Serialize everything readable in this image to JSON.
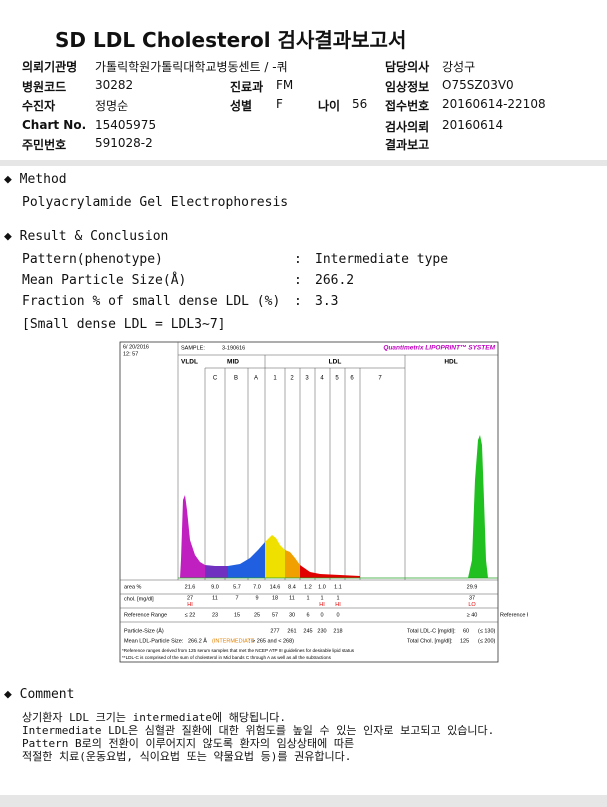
{
  "header": {
    "title": "SD LDL Cholesterol 검사결과보고서",
    "fields": [
      {
        "label": "의뢰기관명",
        "value": "가톨릭학원가톨릭대학교병동센트 / -쿼"
      },
      {
        "label": "담당의사",
        "value": "강성구"
      },
      {
        "label": "병원코드",
        "value": "30282"
      },
      {
        "label": "진료과",
        "value": "FM"
      },
      {
        "label": "임상정보",
        "value": "O75SZ03V0"
      },
      {
        "label": "수진자",
        "value": "정명순"
      },
      {
        "label": "성별",
        "value": "F"
      },
      {
        "label": "나이",
        "value": "56"
      },
      {
        "label": "접수번호",
        "value": "20160614-22108"
      },
      {
        "label": "Chart No.",
        "value": "15405975"
      },
      {
        "label": "검사의뢰",
        "value": "20160614"
      },
      {
        "label": "주민번호",
        "value": "591028-2"
      },
      {
        "label": "결과보고"
      }
    ]
  },
  "method": {
    "heading": "Method",
    "text": "Polyacrylamide Gel Electrophoresis"
  },
  "result": {
    "heading": "Result & Conclusion",
    "separator": ":",
    "rows": [
      {
        "label": "Pattern(phenotype)",
        "value": "Intermediate type"
      },
      {
        "label": "Mean Particle Size(Å)",
        "value": "266.2"
      },
      {
        "label": "Fraction % of small dense LDL (%)",
        "value": "3.3"
      }
    ],
    "note": "[Small dense LDL = LDL3~7]"
  },
  "gel": {
    "date": "6/ 20/2016",
    "time": "12: 57",
    "sample_label": "SAMPLE:",
    "sample": "3-190616",
    "system": "Quantimetrix LIPOPRINT™ SYSTEM",
    "bands": [
      "VLDL",
      "MID",
      "LDL",
      "HDL"
    ],
    "fractions": [
      "C",
      "B",
      "A",
      "1",
      "2",
      "3",
      "4",
      "5",
      "6",
      "7"
    ],
    "area": {
      "label": "area %",
      "values": [
        "21.6",
        "9.0",
        "5.7",
        "7.0",
        "14.6",
        "8.4",
        "1.2",
        "1.0",
        "1.1",
        "29.9"
      ]
    },
    "chol": {
      "label": "chol. [mg/dl]",
      "values": [
        "27",
        "11",
        "7",
        "9",
        "18",
        "11",
        "1",
        "1",
        "1",
        "37"
      ],
      "flags": [
        "HI",
        null,
        null,
        null,
        null,
        null,
        null,
        "HI",
        "HI",
        "LO"
      ]
    },
    "reference": {
      "label": "Reference Range",
      "values": [
        "≤ 22",
        "23",
        "15",
        "25",
        "57",
        "30",
        "6",
        "0",
        "0",
        "≥ 40"
      ]
    },
    "particle_size": {
      "label": "Particle-Size (Å)",
      "values": [
        "277",
        "261",
        "245",
        "230",
        "218"
      ]
    },
    "mean_size": {
      "label": "Mean LDL-Particle Size:",
      "value": "266.2 Å",
      "class": "(INTERMEDIATE",
      "range": ": > 265 and < 268)"
    },
    "total_ldl": {
      "label": "Total LDL-C [mg/dl]:",
      "value": "60",
      "range": "(≤ 130)"
    },
    "total_chol": {
      "label": "Total Chol. [mg/dl]:",
      "value": "125",
      "range": "(≤ 200)"
    },
    "footnotes": [
      "*Reference ranges derived from 125 serum samples that met the NCEP ATP III guidelines for desirable lipid status",
      "**LDL-C is comprised of the sum of cholesterol in Mid bands C through A as well as all the subtractions"
    ]
  },
  "comment": {
    "heading": "Comment",
    "lines": [
      "상기환자 LDL 크기는 intermediate에 해당됩니다.",
      "Intermediate LDL은 심혈관 질환에 대한 위험도를 높일 수 있는 인자로 보고되고 있습니다.",
      "Pattern B로의 전환이 이루어지지 않도록 환자의 임상상태에 따른",
      "적절한 치료(운동요법, 식이요법 또는 약물요법 등)를 권유합니다."
    ]
  }
}
